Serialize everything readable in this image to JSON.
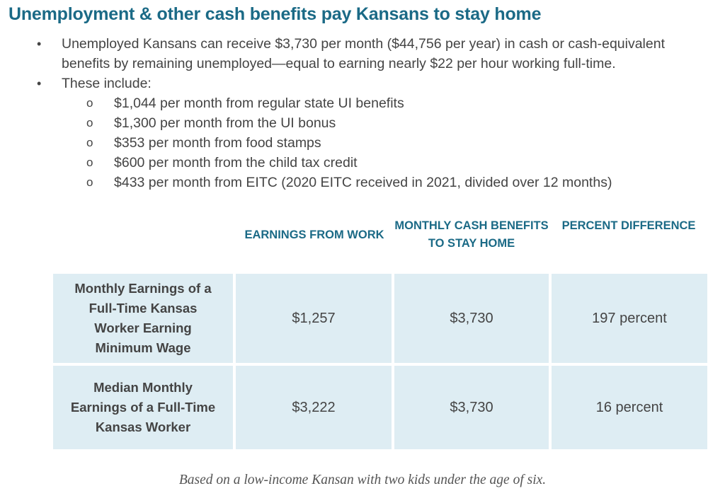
{
  "title": "Unemployment & other cash benefits pay Kansans to stay home",
  "bullets": [
    {
      "marker": "•",
      "text": "Unemployed Kansans can receive $3,730 per month ($44,756 per year) in cash or cash-equivalent benefits by remaining unemployed—equal to earning nearly $22 per hour working full-time."
    },
    {
      "marker": "•",
      "text": "These include:"
    }
  ],
  "subitems": [
    {
      "marker": "o",
      "text": "$1,044 per month from regular state UI benefits"
    },
    {
      "marker": "o",
      "text": "$1,300 per month from the UI bonus"
    },
    {
      "marker": "o",
      "text": "$353 per month from food stamps"
    },
    {
      "marker": "o",
      "text": "$600 per month from the child tax credit"
    },
    {
      "marker": "o",
      "text": "$433 per month from EITC (2020 EITC received in 2021, divided over 12 months)"
    }
  ],
  "table": {
    "headers": [
      "EARNINGS FROM WORK",
      "MONTHLY CASH BENEFITS TO STAY HOME",
      "PERCENT DIFFERENCE"
    ],
    "rows": [
      {
        "label": "Monthly Earnings of a Full-Time Kansas Worker Earning Minimum Wage",
        "earnings": "$1,257",
        "benefits": "$3,730",
        "difference": "197 percent"
      },
      {
        "label": "Median Monthly Earnings of a Full-Time Kansas Worker",
        "earnings": "$3,222",
        "benefits": "$3,730",
        "difference": "16 percent"
      }
    ]
  },
  "footnote": "Based on a low-income Kansan with two kids under the age of six."
}
